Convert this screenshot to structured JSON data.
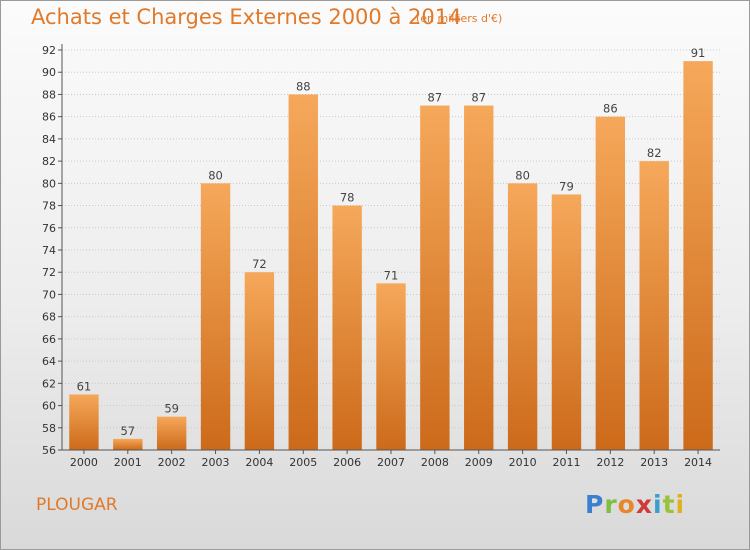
{
  "title": "Achats et Charges Externes 2000 à 2014",
  "subtitle": "(en milliers d'€)",
  "commune": "PLOUGAR",
  "logo": {
    "parts": [
      "P",
      "r",
      "o",
      "x",
      "i",
      "t",
      "i"
    ]
  },
  "colors": {
    "bar_top": "#f6a85a",
    "bar_bottom": "#cc6a1a",
    "text_accent": "#e07a2a"
  },
  "chart_data": {
    "type": "bar",
    "title": "Achats et Charges Externes 2000 à 2014",
    "subtitle": "(en milliers d'€)",
    "xlabel": "",
    "ylabel": "",
    "categories": [
      "2000",
      "2001",
      "2002",
      "2003",
      "2004",
      "2005",
      "2006",
      "2007",
      "2008",
      "2009",
      "2010",
      "2011",
      "2012",
      "2013",
      "2014"
    ],
    "values": [
      61,
      57,
      59,
      80,
      72,
      88,
      78,
      71,
      87,
      87,
      80,
      79,
      86,
      82,
      91
    ],
    "ylim": [
      56,
      92
    ],
    "yticks": [
      56,
      58,
      60,
      62,
      64,
      66,
      68,
      70,
      72,
      74,
      76,
      78,
      80,
      82,
      84,
      86,
      88,
      90,
      92
    ],
    "grid": true,
    "legend": "none"
  }
}
